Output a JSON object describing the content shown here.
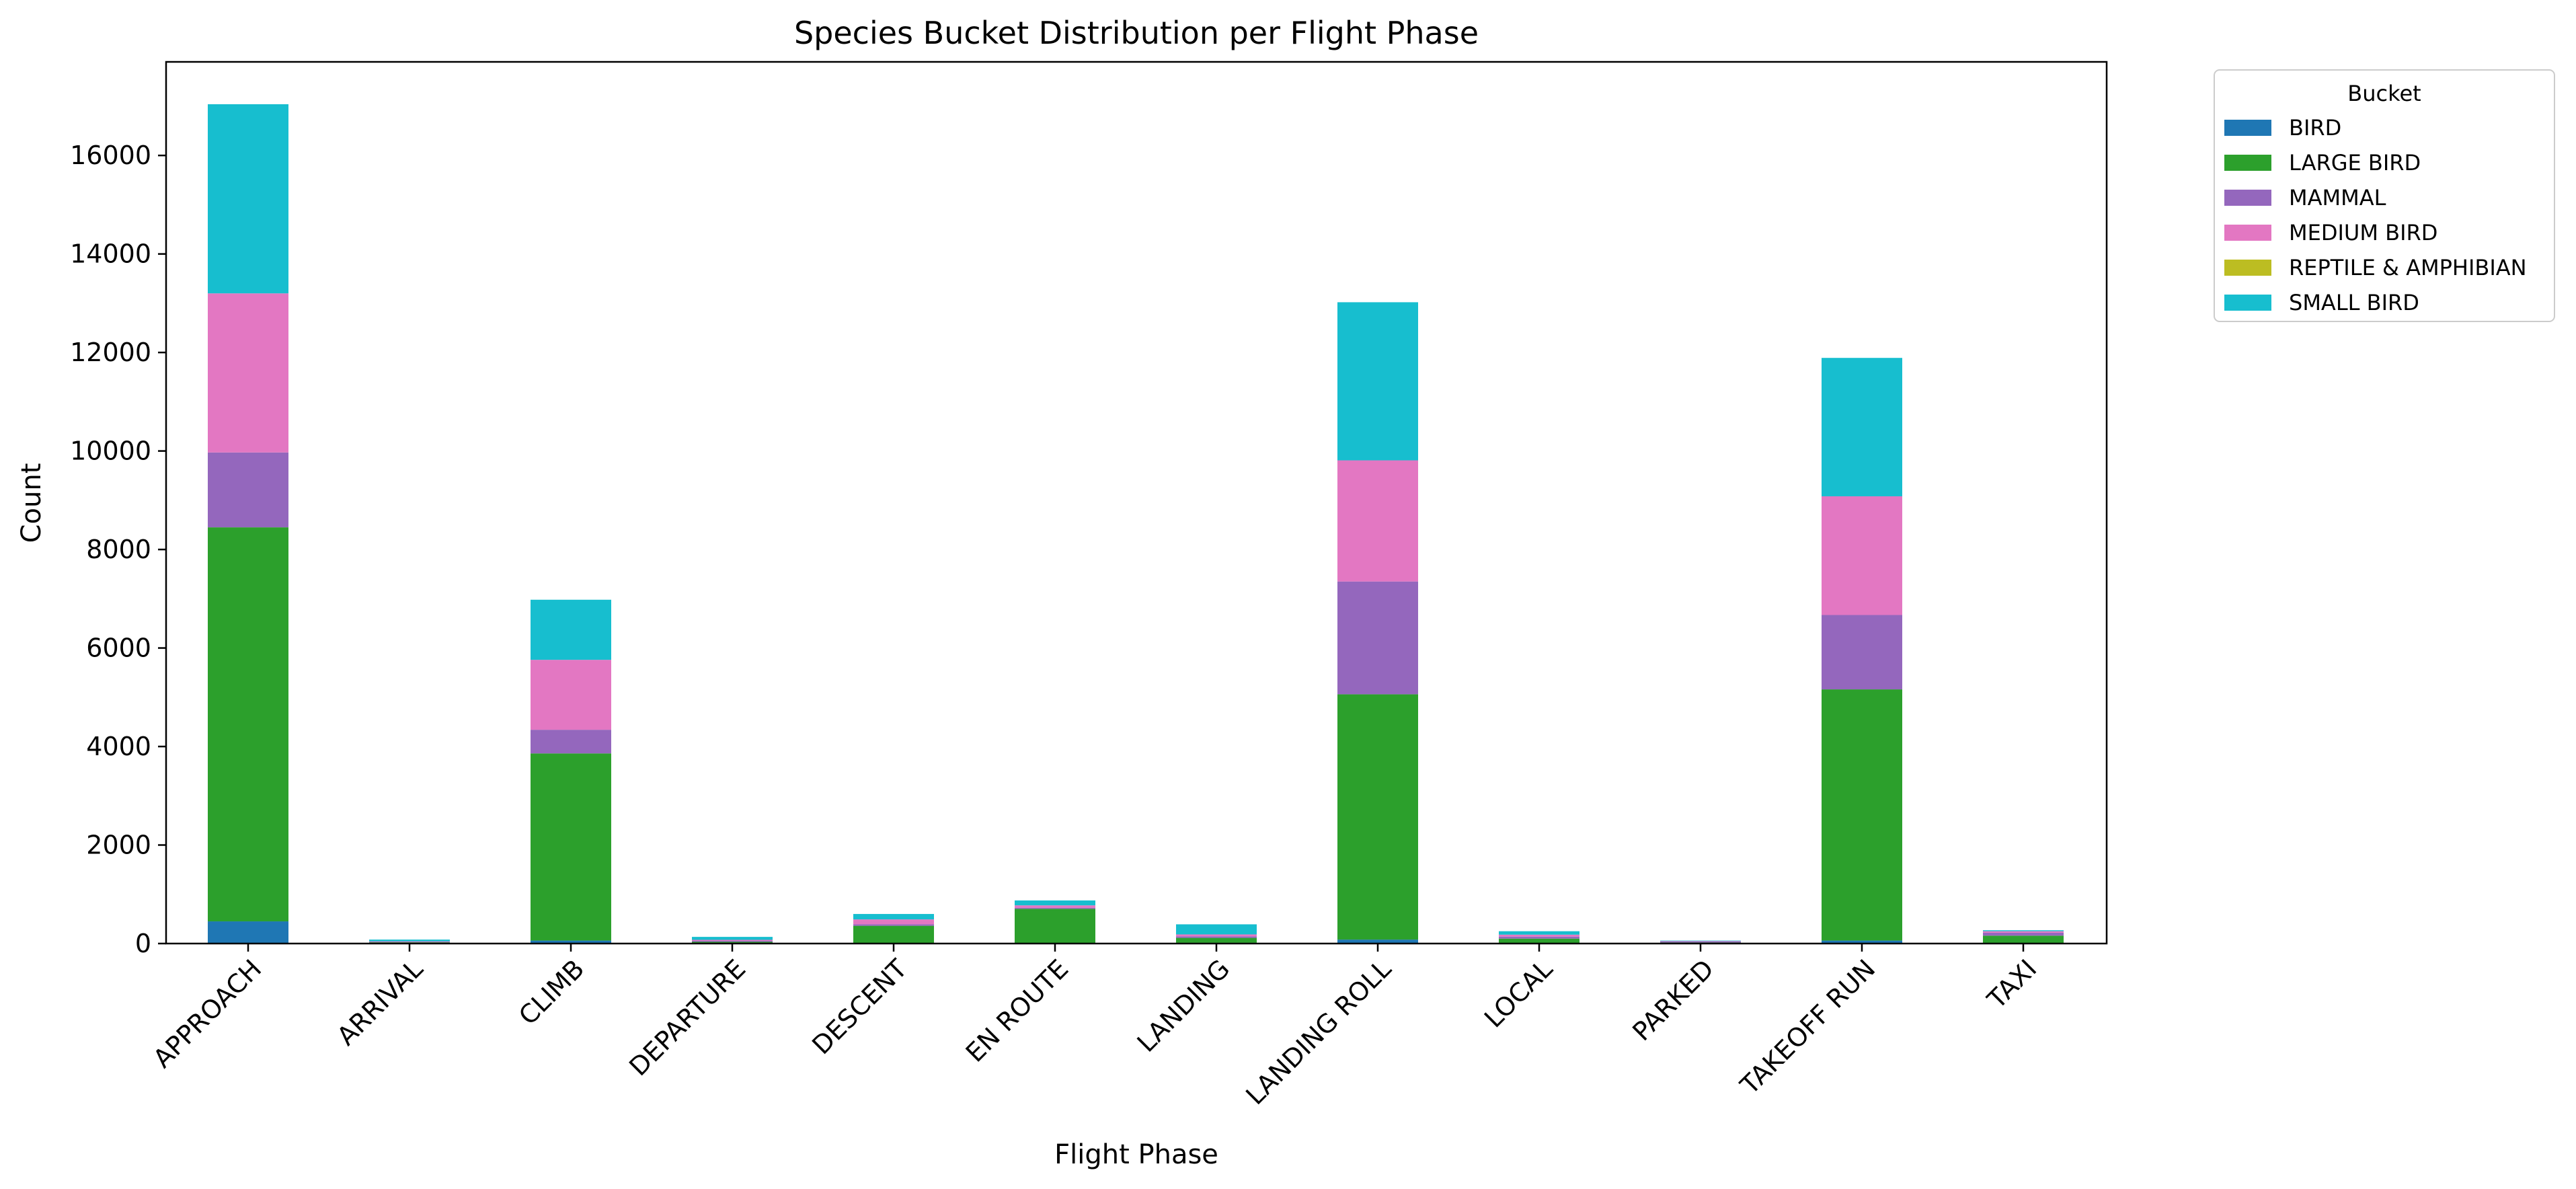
{
  "chart_data": {
    "type": "bar",
    "stacked": true,
    "title": "Species Bucket Distribution per Flight Phase",
    "xlabel": "Flight Phase",
    "ylabel": "Count",
    "ylim": [
      0,
      17900
    ],
    "yticks": [
      0,
      2000,
      4000,
      6000,
      8000,
      10000,
      12000,
      14000,
      16000
    ],
    "ytick_labels": [
      "0",
      "2000",
      "4000",
      "6000",
      "8000",
      "10000",
      "12000",
      "14000",
      "16000"
    ],
    "grid": false,
    "legend": {
      "title": "Bucket",
      "placement": "outside-top-right"
    },
    "categories": [
      "APPROACH",
      "ARRIVAL",
      "CLIMB",
      "DEPARTURE",
      "DESCENT",
      "EN ROUTE",
      "LANDING",
      "LANDING ROLL",
      "LOCAL",
      "PARKED",
      "TAKEOFF RUN",
      "TAXI"
    ],
    "series": [
      {
        "name": "BIRD",
        "color": "#1f77b4",
        "values": [
          450,
          5,
          60,
          5,
          10,
          5,
          15,
          80,
          10,
          5,
          60,
          10
        ]
      },
      {
        "name": "LARGE BIRD",
        "color": "#2ca02c",
        "values": [
          8000,
          20,
          3800,
          30,
          350,
          700,
          100,
          4980,
          90,
          15,
          5100,
          150
        ]
      },
      {
        "name": "MAMMAL",
        "color": "#9467bd",
        "values": [
          1520,
          10,
          480,
          20,
          30,
          20,
          30,
          2290,
          40,
          20,
          1510,
          60
        ]
      },
      {
        "name": "MEDIUM BIRD",
        "color": "#e377c2",
        "values": [
          3230,
          10,
          1420,
          20,
          100,
          50,
          40,
          2460,
          40,
          10,
          2410,
          30
        ]
      },
      {
        "name": "REPTILE & AMPHIBIAN",
        "color": "#bcbd22",
        "values": [
          0,
          0,
          0,
          0,
          0,
          0,
          0,
          0,
          0,
          0,
          0,
          0
        ]
      },
      {
        "name": "SMALL BIRD",
        "color": "#17becf",
        "values": [
          3840,
          35,
          1220,
          60,
          110,
          100,
          205,
          3210,
          70,
          10,
          2810,
          20
        ]
      }
    ]
  }
}
